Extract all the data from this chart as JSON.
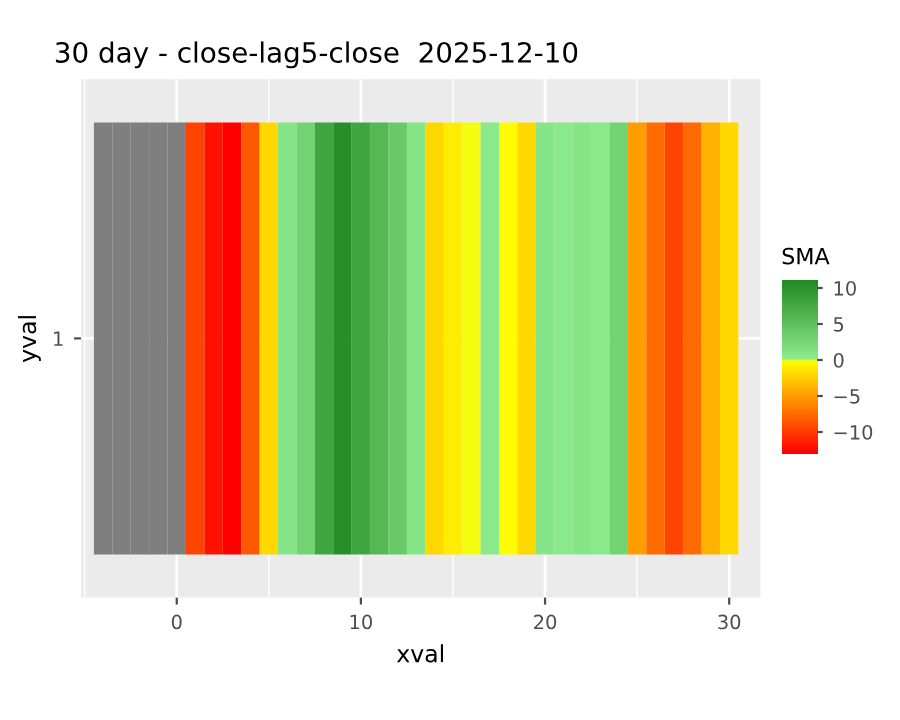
{
  "chart_data": {
    "type": "heatmap",
    "title": "30 day - close-lag5-close  2025-12-10",
    "xlabel": "xval",
    "ylabel": "yval",
    "clabel": "SMA",
    "x": [
      -4,
      -3,
      -2,
      -1,
      0,
      1,
      2,
      3,
      4,
      5,
      6,
      7,
      8,
      9,
      10,
      11,
      12,
      13,
      14,
      15,
      16,
      17,
      18,
      19,
      20,
      21,
      22,
      23,
      24,
      25,
      26,
      27,
      28,
      29,
      30
    ],
    "y_categories": [
      "1"
    ],
    "cells": [
      [
        null,
        null,
        null,
        null,
        null,
        -9.5,
        -12,
        -13,
        -8.5,
        -2,
        1,
        3,
        8,
        10.5,
        8,
        6,
        4,
        1,
        -2,
        -1,
        0,
        0.5,
        -0.1,
        -2,
        1,
        0.5,
        1,
        0.5,
        3,
        -5,
        -7.5,
        -9.5,
        -7.5,
        -4,
        -2
      ]
    ],
    "xlim": [
      -5.2,
      31.7
    ],
    "xticks": [
      0,
      10,
      20,
      30
    ],
    "clim": [
      -13,
      11
    ],
    "cticks": [
      -10,
      -5,
      0,
      5,
      10
    ],
    "grid": true
  }
}
